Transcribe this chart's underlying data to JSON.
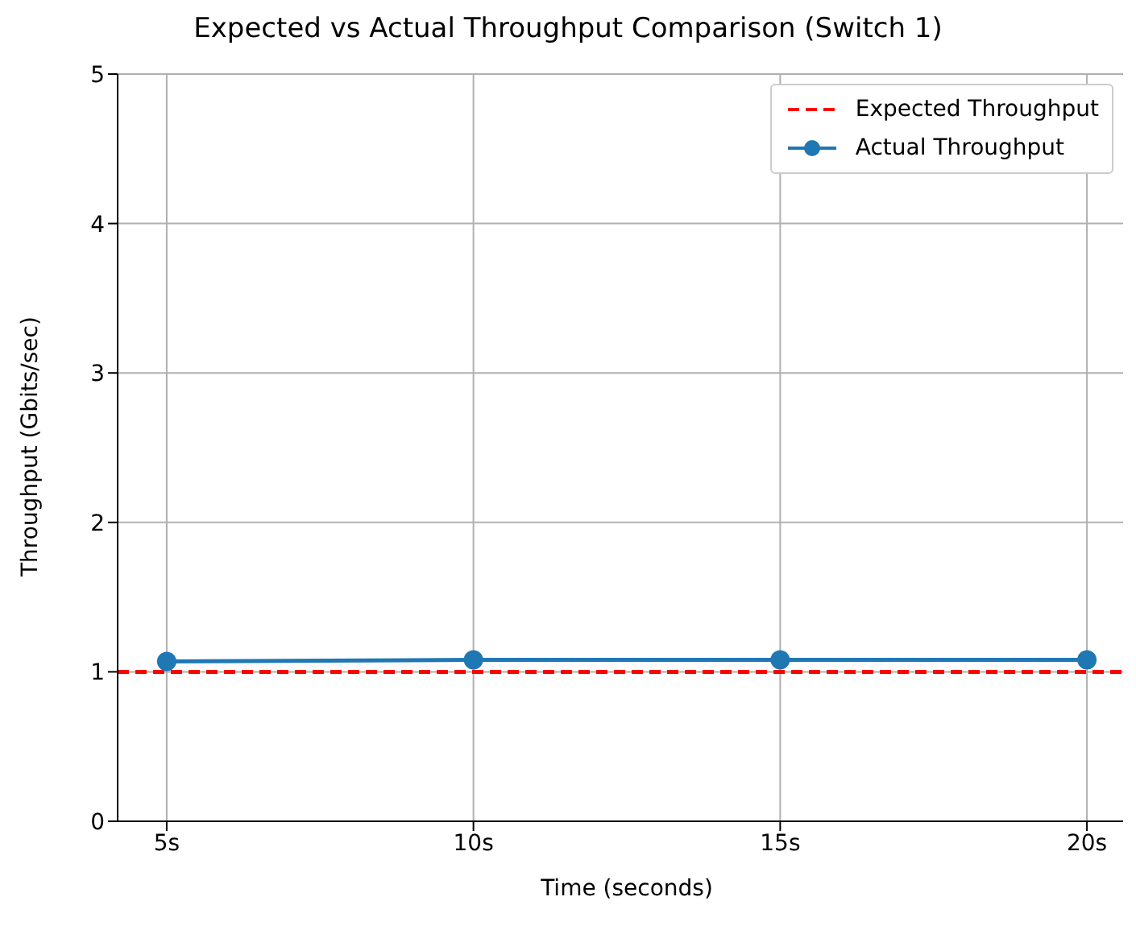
{
  "chart_data": {
    "type": "line",
    "title": "Expected vs Actual Throughput Comparison (Switch 1)",
    "xlabel": "Time (seconds)",
    "ylabel": "Throughput (Gbits/sec)",
    "categories": [
      "5s",
      "10s",
      "15s",
      "20s"
    ],
    "series": [
      {
        "name": "Actual Throughput",
        "color": "#1f77b4",
        "values": [
          1.07,
          1.08,
          1.08,
          1.08
        ]
      }
    ],
    "ref_lines": [
      {
        "axis": "y",
        "value": 1,
        "label": "Expected Throughput",
        "color": "#ff0000",
        "line_style": "dashed"
      }
    ],
    "ylim": [
      0,
      5
    ],
    "yticks": [
      0,
      1,
      2,
      3,
      4,
      5
    ],
    "grid": true,
    "legend": "top right",
    "marker": "circle",
    "line_style": "solid"
  }
}
